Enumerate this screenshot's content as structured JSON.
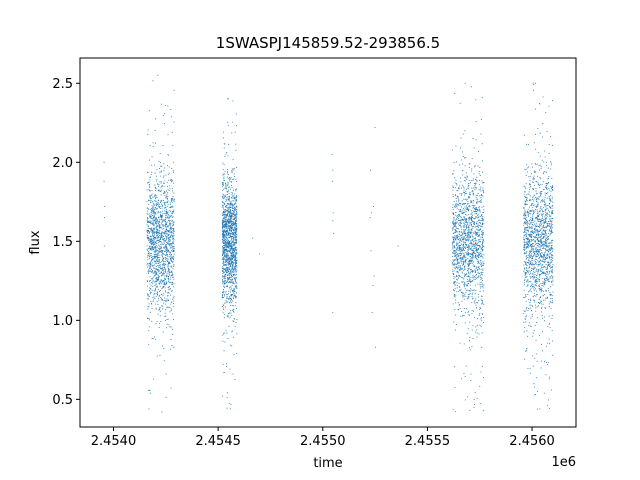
{
  "chart_data": {
    "type": "scatter",
    "title": "1SWASPJ145859.52-293856.5",
    "xlabel": "time",
    "ylabel": "flux",
    "x_offset_label": "1e6",
    "xlim": [
      2453840,
      2456210
    ],
    "ylim": [
      0.325,
      2.66
    ],
    "x_ticks": [
      2454000,
      2454500,
      2455000,
      2455500,
      2456000
    ],
    "x_tick_labels": [
      "2.4540",
      "2.4545",
      "2.4550",
      "2.4555",
      "2.4560"
    ],
    "y_ticks": [
      0.5,
      1.0,
      1.5,
      2.0,
      2.5
    ],
    "y_tick_labels": [
      "0.5",
      "1.0",
      "1.5",
      "2.0",
      "2.5"
    ],
    "grid": false,
    "marker_color": "#1f77b4",
    "series": [
      {
        "seasons": [
          {
            "x_start": 2454160,
            "x_end": 2454290,
            "y_center": 1.5,
            "y_spread": 0.21,
            "y_min": 0.41,
            "y_max": 2.56
          },
          {
            "x_start": 2454520,
            "x_end": 2454590,
            "y_center": 1.5,
            "y_spread": 0.19,
            "y_min": 0.43,
            "y_max": 2.41
          },
          {
            "x_start": 2455620,
            "x_end": 2455770,
            "y_center": 1.5,
            "y_spread": 0.22,
            "y_min": 0.42,
            "y_max": 2.51
          },
          {
            "x_start": 2455960,
            "x_end": 2456100,
            "y_center": 1.5,
            "y_spread": 0.22,
            "y_min": 0.43,
            "y_max": 2.51
          }
        ],
        "isolated_points": [
          {
            "x": 2453955,
            "y": 2.0
          },
          {
            "x": 2453955,
            "y": 1.88
          },
          {
            "x": 2453958,
            "y": 1.72
          },
          {
            "x": 2453957,
            "y": 1.65
          },
          {
            "x": 2453956,
            "y": 1.47
          },
          {
            "x": 2454665,
            "y": 1.52
          },
          {
            "x": 2454698,
            "y": 1.42
          },
          {
            "x": 2455045,
            "y": 2.05
          },
          {
            "x": 2455048,
            "y": 1.95
          },
          {
            "x": 2455046,
            "y": 1.88
          },
          {
            "x": 2455050,
            "y": 1.68
          },
          {
            "x": 2455048,
            "y": 1.63
          },
          {
            "x": 2455052,
            "y": 1.55
          },
          {
            "x": 2455048,
            "y": 1.05
          },
          {
            "x": 2455228,
            "y": 1.95
          },
          {
            "x": 2455232,
            "y": 1.68
          },
          {
            "x": 2455226,
            "y": 1.65
          },
          {
            "x": 2455242,
            "y": 1.72
          },
          {
            "x": 2455250,
            "y": 2.22
          },
          {
            "x": 2455230,
            "y": 1.44
          },
          {
            "x": 2455245,
            "y": 1.28
          },
          {
            "x": 2455240,
            "y": 1.22
          },
          {
            "x": 2455236,
            "y": 1.05
          },
          {
            "x": 2455252,
            "y": 0.83
          },
          {
            "x": 2455360,
            "y": 1.47
          }
        ]
      }
    ]
  }
}
